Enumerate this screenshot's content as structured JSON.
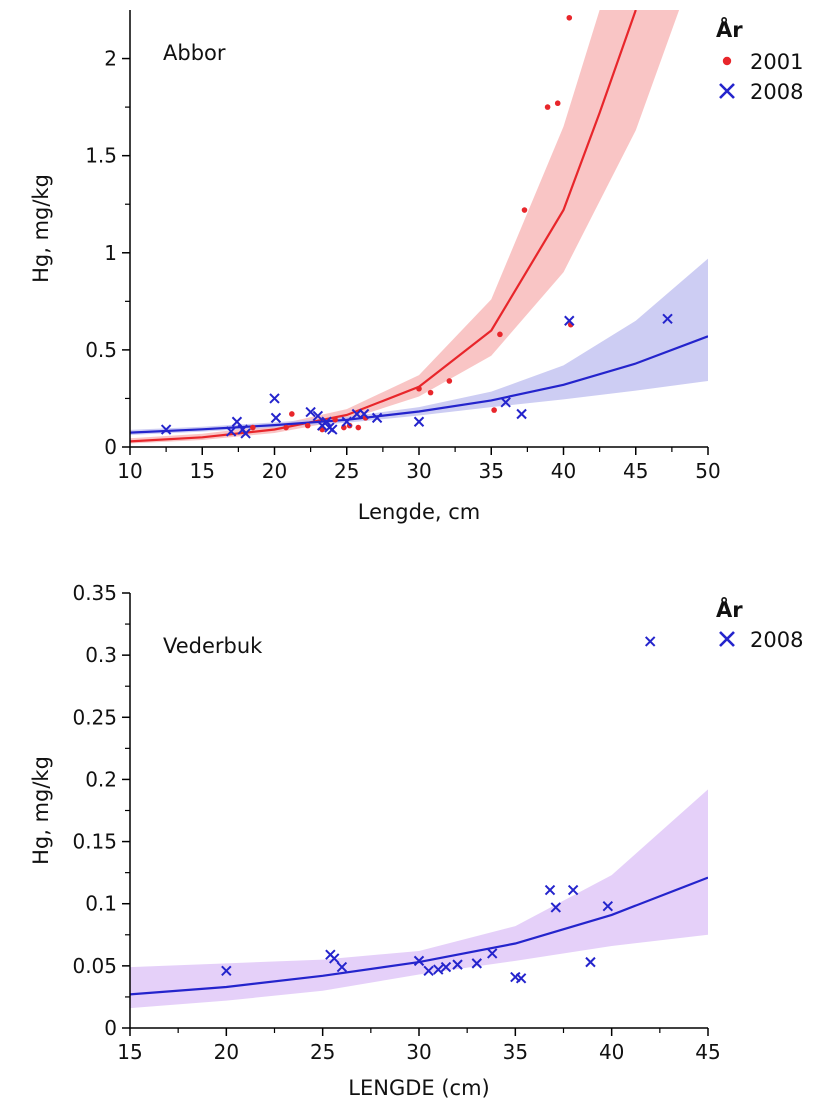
{
  "chart_data": [
    {
      "type": "scatter",
      "title": "",
      "panel_label": "Abbor",
      "xlabel": "Lengde, cm",
      "ylabel": "Hg, mg/kg",
      "xlim": [
        10,
        50
      ],
      "ylim": [
        0,
        2.25
      ],
      "x_ticks": [
        "10",
        "15",
        "20",
        "25",
        "30",
        "35",
        "40",
        "45",
        "50"
      ],
      "y_ticks": [
        "0",
        "0.5",
        "1",
        "1.5",
        "2"
      ],
      "grid": false,
      "legend": {
        "title": "År",
        "position": "right-top"
      },
      "series": [
        {
          "name": "2001",
          "marker": "dot",
          "color": "#e8262b",
          "band_color": "#f7b7b7",
          "points": [
            [
              18.5,
              0.1
            ],
            [
              21.2,
              0.17
            ],
            [
              20.8,
              0.1
            ],
            [
              22.3,
              0.11
            ],
            [
              23.3,
              0.09
            ],
            [
              24.2,
              0.14
            ],
            [
              24.8,
              0.1
            ],
            [
              25.2,
              0.11
            ],
            [
              25.8,
              0.1
            ],
            [
              26.3,
              0.15
            ],
            [
              30.0,
              0.3
            ],
            [
              30.8,
              0.28
            ],
            [
              32.1,
              0.34
            ],
            [
              35.2,
              0.19
            ],
            [
              35.6,
              0.58
            ],
            [
              37.3,
              1.22
            ],
            [
              38.9,
              1.75
            ],
            [
              39.6,
              1.77
            ],
            [
              40.4,
              2.21
            ],
            [
              40.5,
              0.63
            ]
          ],
          "fit": [
            [
              10,
              0.029
            ],
            [
              15,
              0.05
            ],
            [
              20,
              0.09
            ],
            [
              25,
              0.165
            ],
            [
              30,
              0.31
            ],
            [
              35,
              0.6
            ],
            [
              40,
              1.22
            ],
            [
              42.5,
              1.72
            ],
            [
              45,
              2.25
            ]
          ],
          "band_upper": [
            [
              10,
              0.045
            ],
            [
              15,
              0.068
            ],
            [
              20,
              0.112
            ],
            [
              25,
              0.195
            ],
            [
              30,
              0.37
            ],
            [
              35,
              0.76
            ],
            [
              40,
              1.65
            ],
            [
              42.5,
              2.25
            ]
          ],
          "band_lower": [
            [
              10,
              0.018
            ],
            [
              15,
              0.036
            ],
            [
              20,
              0.072
            ],
            [
              25,
              0.14
            ],
            [
              30,
              0.26
            ],
            [
              35,
              0.47
            ],
            [
              40,
              0.9
            ],
            [
              45,
              1.63
            ],
            [
              48,
              2.25
            ]
          ]
        },
        {
          "name": "2008",
          "marker": "x",
          "color": "#2424cc",
          "band_color": "#c0c0f0",
          "points": [
            [
              12.5,
              0.09
            ],
            [
              17.0,
              0.08
            ],
            [
              17.4,
              0.13
            ],
            [
              17.8,
              0.09
            ],
            [
              18.0,
              0.07
            ],
            [
              20.0,
              0.25
            ],
            [
              20.1,
              0.15
            ],
            [
              22.5,
              0.18
            ],
            [
              23.0,
              0.16
            ],
            [
              23.3,
              0.11
            ],
            [
              23.6,
              0.13
            ],
            [
              23.8,
              0.1
            ],
            [
              24.0,
              0.09
            ],
            [
              25.0,
              0.13
            ],
            [
              25.7,
              0.17
            ],
            [
              26.2,
              0.17
            ],
            [
              27.1,
              0.15
            ],
            [
              30.0,
              0.13
            ],
            [
              36.0,
              0.23
            ],
            [
              37.1,
              0.17
            ],
            [
              40.4,
              0.65
            ],
            [
              47.2,
              0.66
            ]
          ],
          "fit": [
            [
              10,
              0.074
            ],
            [
              15,
              0.091
            ],
            [
              20,
              0.113
            ],
            [
              25,
              0.14
            ],
            [
              30,
              0.183
            ],
            [
              35,
              0.24
            ],
            [
              40,
              0.32
            ],
            [
              45,
              0.43
            ],
            [
              50,
              0.57
            ]
          ],
          "band_upper": [
            [
              10,
              0.088
            ],
            [
              15,
              0.104
            ],
            [
              20,
              0.127
            ],
            [
              25,
              0.155
            ],
            [
              30,
              0.205
            ],
            [
              35,
              0.285
            ],
            [
              40,
              0.42
            ],
            [
              45,
              0.65
            ],
            [
              50,
              0.97
            ]
          ],
          "band_lower": [
            [
              10,
              0.062
            ],
            [
              15,
              0.079
            ],
            [
              20,
              0.1
            ],
            [
              25,
              0.125
            ],
            [
              30,
              0.162
            ],
            [
              35,
              0.205
            ],
            [
              40,
              0.245
            ],
            [
              45,
              0.29
            ],
            [
              50,
              0.34
            ]
          ]
        }
      ]
    },
    {
      "type": "scatter",
      "title": "",
      "panel_label": "Vederbuk",
      "xlabel": "LENGDE (cm)",
      "ylabel": "Hg, mg/kg",
      "xlim": [
        15,
        45
      ],
      "ylim": [
        0,
        0.35
      ],
      "x_ticks": [
        "15",
        "20",
        "25",
        "30",
        "35",
        "40",
        "45"
      ],
      "y_ticks": [
        "0",
        "0.05",
        "0.1",
        "0.15",
        "0.2",
        "0.25",
        "0.3",
        "0.35"
      ],
      "grid": false,
      "legend": {
        "title": "År",
        "position": "right-top"
      },
      "series": [
        {
          "name": "2008",
          "marker": "x",
          "color": "#2424cc",
          "band_color": "#dfc4f7",
          "points": [
            [
              20.0,
              0.046
            ],
            [
              25.4,
              0.059
            ],
            [
              25.6,
              0.056
            ],
            [
              26.0,
              0.049
            ],
            [
              30.0,
              0.054
            ],
            [
              30.5,
              0.046
            ],
            [
              31.0,
              0.047
            ],
            [
              31.4,
              0.049
            ],
            [
              32.0,
              0.051
            ],
            [
              33.0,
              0.052
            ],
            [
              33.8,
              0.06
            ],
            [
              35.0,
              0.041
            ],
            [
              35.3,
              0.04
            ],
            [
              36.8,
              0.111
            ],
            [
              37.1,
              0.097
            ],
            [
              38.0,
              0.111
            ],
            [
              38.9,
              0.053
            ],
            [
              39.8,
              0.098
            ],
            [
              42.0,
              0.311
            ]
          ],
          "fit": [
            [
              15,
              0.027
            ],
            [
              20,
              0.033
            ],
            [
              25,
              0.042
            ],
            [
              30,
              0.053
            ],
            [
              35,
              0.068
            ],
            [
              40,
              0.091
            ],
            [
              45,
              0.121
            ]
          ],
          "band_upper": [
            [
              15,
              0.049
            ],
            [
              20,
              0.052
            ],
            [
              25,
              0.055
            ],
            [
              30,
              0.062
            ],
            [
              35,
              0.082
            ],
            [
              40,
              0.123
            ],
            [
              45,
              0.192
            ]
          ],
          "band_lower": [
            [
              15,
              0.016
            ],
            [
              20,
              0.022
            ],
            [
              25,
              0.03
            ],
            [
              30,
              0.043
            ],
            [
              35,
              0.054
            ],
            [
              40,
              0.066
            ],
            [
              45,
              0.075
            ]
          ]
        }
      ]
    }
  ]
}
